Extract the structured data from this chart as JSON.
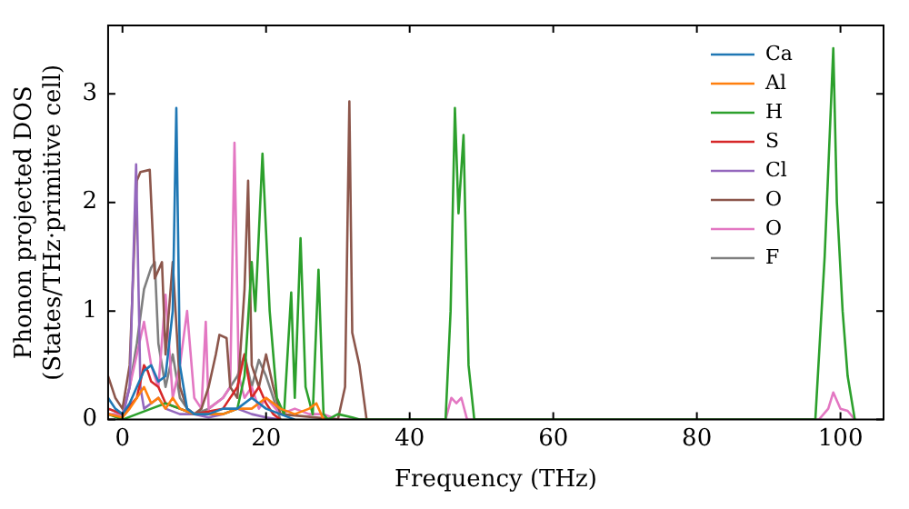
{
  "chart_data": {
    "type": "line",
    "xlabel": "Frequency (THz)",
    "ylabel": "Phonon projected DOS\n(States/THz·primitive cell)",
    "xlim": [
      -2,
      106
    ],
    "ylim": [
      0,
      3.63
    ],
    "xticks": [
      0,
      20,
      40,
      60,
      80,
      100
    ],
    "yticks": [
      0,
      1,
      2,
      3
    ],
    "grid": false,
    "legend": "top right",
    "marker": "none",
    "line_style": "solid",
    "series": [
      {
        "name": "Ca",
        "color": "#1f77b4",
        "x": [
          -2,
          -1,
          0,
          1,
          2,
          3,
          4,
          5,
          6,
          7,
          7.5,
          8,
          9,
          10,
          12,
          14,
          16,
          18,
          20,
          22,
          24
        ],
        "values": [
          0.2,
          0.1,
          0.05,
          0.15,
          0.3,
          0.45,
          0.5,
          0.35,
          0.4,
          1.0,
          2.87,
          0.5,
          0.1,
          0.05,
          0.05,
          0.1,
          0.1,
          0.2,
          0.1,
          0.05,
          0
        ]
      },
      {
        "name": "Al",
        "color": "#ff7f0e",
        "x": [
          -2,
          0,
          1,
          2,
          3,
          4,
          5,
          6,
          7,
          8,
          10,
          14,
          16,
          18,
          20,
          22,
          24,
          26,
          27,
          28
        ],
        "values": [
          0.05,
          0.02,
          0.1,
          0.2,
          0.3,
          0.15,
          0.2,
          0.1,
          0.2,
          0.1,
          0.05,
          0.05,
          0.1,
          0.1,
          0.2,
          0.1,
          0.05,
          0.1,
          0.15,
          0
        ]
      },
      {
        "name": "H",
        "color": "#2ca02c",
        "x": [
          -2,
          0,
          2,
          4,
          6,
          8,
          10,
          14,
          16,
          17,
          18,
          18.5,
          19.5,
          20.5,
          21.5,
          22.5,
          23.5,
          24,
          24.8,
          25.5,
          26.5,
          27.3,
          28,
          28.6,
          30,
          32,
          33,
          45,
          45.7,
          46.3,
          46.8,
          47.5,
          48.2,
          49,
          96.5,
          97.8,
          99,
          99.5,
          100.3,
          101,
          102
        ],
        "values": [
          0.05,
          0,
          0.05,
          0.1,
          0.15,
          0.1,
          0.05,
          0.05,
          0.1,
          0.4,
          1.45,
          1.0,
          2.45,
          1.0,
          0.2,
          0.05,
          1.17,
          0.2,
          1.67,
          0.3,
          0.05,
          1.38,
          0.05,
          0,
          0.05,
          0.02,
          0,
          0,
          1.0,
          2.87,
          1.9,
          2.62,
          0.5,
          0,
          0,
          1.5,
          3.42,
          2.0,
          1.0,
          0.4,
          0
        ]
      },
      {
        "name": "S",
        "color": "#d62728",
        "x": [
          -2,
          0,
          2,
          3,
          3.5,
          4,
          5,
          6,
          8,
          10,
          14,
          16,
          17,
          18,
          19,
          20,
          21,
          22
        ],
        "values": [
          0.1,
          0.05,
          0.2,
          0.5,
          0.45,
          0.35,
          0.3,
          0.15,
          0.1,
          0.05,
          0.1,
          0.3,
          0.6,
          0.2,
          0.3,
          0.15,
          0.05,
          0
        ]
      },
      {
        "name": "Cl",
        "color": "#9467bd",
        "x": [
          -2,
          0,
          1,
          1.9,
          2.5,
          3,
          4,
          5,
          6,
          8,
          10,
          12,
          14,
          16,
          18,
          20,
          22
        ],
        "values": [
          0.05,
          0.02,
          0.3,
          2.35,
          0.3,
          0.1,
          0.15,
          0.2,
          0.1,
          0.05,
          0.05,
          0.02,
          0.05,
          0.1,
          0.05,
          0.02,
          0
        ]
      },
      {
        "name": "O",
        "color": "#8c564b",
        "x": [
          -2,
          -1,
          0,
          1,
          2,
          2.5,
          3.8,
          4.5,
          5.5,
          6,
          7,
          8,
          9,
          10,
          11,
          12,
          13,
          13.5,
          14.5,
          15,
          16,
          17,
          17.5,
          18,
          19,
          20,
          21,
          22,
          30,
          31,
          31.6,
          32,
          33,
          34
        ],
        "values": [
          0.4,
          0.2,
          0.1,
          0.5,
          2.2,
          2.28,
          2.3,
          1.3,
          1.45,
          0.6,
          1.45,
          0.3,
          0.1,
          0.05,
          0.1,
          0.3,
          0.6,
          0.78,
          0.75,
          0.3,
          0.2,
          1.2,
          2.2,
          0.5,
          0.3,
          0.6,
          0.3,
          0.05,
          0,
          0.3,
          2.93,
          0.8,
          0.5,
          0
        ]
      },
      {
        "name": "O",
        "color": "#e377c2",
        "x": [
          -2,
          0,
          1,
          2,
          3,
          4,
          5,
          6,
          7,
          8,
          9,
          10,
          11,
          11.6,
          12,
          14,
          15,
          15.6,
          16.2,
          17,
          18,
          19,
          20,
          22,
          24,
          26,
          28,
          30,
          45,
          45.8,
          46.5,
          47.2,
          48,
          97,
          98.3,
          99,
          100,
          101,
          102
        ],
        "values": [
          0.05,
          0.05,
          0.3,
          0.6,
          0.9,
          0.5,
          0.3,
          1.15,
          0.2,
          0.5,
          1.0,
          0.2,
          0.1,
          0.9,
          0.1,
          0.2,
          0.3,
          2.55,
          0.4,
          0.2,
          0.3,
          0.1,
          0.2,
          0.05,
          0.1,
          0.05,
          0.05,
          0,
          0,
          0.2,
          0.15,
          0.2,
          0,
          0,
          0.1,
          0.25,
          0.1,
          0.08,
          0
        ]
      },
      {
        "name": "F",
        "color": "#7f7f7f",
        "x": [
          -2,
          0,
          1,
          2,
          3,
          4,
          4.5,
          5,
          6,
          7,
          8,
          9,
          10,
          12,
          14,
          16,
          17,
          18,
          19,
          20,
          21,
          22
        ],
        "values": [
          0.1,
          0.05,
          0.3,
          0.7,
          1.2,
          1.4,
          1.45,
          0.7,
          0.3,
          0.6,
          0.2,
          0.1,
          0.05,
          0.1,
          0.2,
          0.4,
          0.6,
          0.3,
          0.55,
          0.4,
          0.2,
          0
        ]
      }
    ]
  }
}
